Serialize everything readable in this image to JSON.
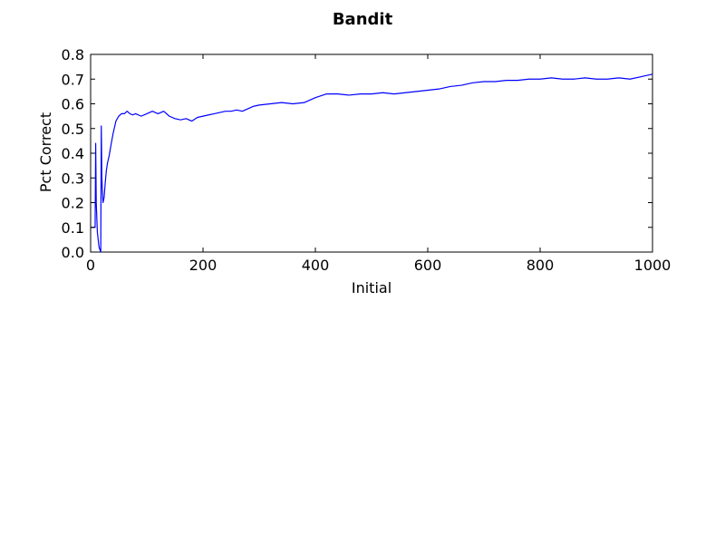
{
  "chart_data": {
    "type": "line",
    "title": "Bandit",
    "xlabel": "Initial",
    "ylabel": "Pct Correct",
    "xlim": [
      0,
      1000
    ],
    "ylim": [
      0.0,
      0.8
    ],
    "xticks": [
      0,
      200,
      400,
      600,
      800,
      1000
    ],
    "xtick_labels": [
      "0",
      "200",
      "400",
      "600",
      "800",
      "1000"
    ],
    "yticks": [
      0.0,
      0.1,
      0.2,
      0.3,
      0.4,
      0.5,
      0.6,
      0.7,
      0.8
    ],
    "ytick_labels": [
      "0.0",
      "0.1",
      "0.2",
      "0.3",
      "0.4",
      "0.5",
      "0.6",
      "0.7",
      "0.8"
    ],
    "grid": false,
    "colors": {
      "line": "#0000ff",
      "axes": "#000000",
      "background": "#ffffff"
    },
    "series": [
      {
        "x": [
          1,
          8,
          9,
          10,
          12,
          15,
          18,
          19,
          20,
          22,
          24,
          26,
          28,
          30,
          33,
          36,
          40,
          45,
          50,
          55,
          60,
          65,
          70,
          75,
          80,
          90,
          100,
          110,
          120,
          130,
          140,
          150,
          160,
          170,
          180,
          190,
          200,
          210,
          220,
          230,
          240,
          250,
          260,
          270,
          280,
          290,
          300,
          320,
          340,
          360,
          380,
          400,
          420,
          440,
          460,
          480,
          500,
          520,
          540,
          560,
          580,
          600,
          620,
          640,
          660,
          680,
          700,
          720,
          740,
          760,
          780,
          800,
          820,
          840,
          860,
          880,
          900,
          920,
          940,
          960,
          980,
          1000
        ],
        "y": [
          0.1,
          0.1,
          0.44,
          0.2,
          0.08,
          0.02,
          0.0,
          0.51,
          0.3,
          0.2,
          0.22,
          0.28,
          0.33,
          0.36,
          0.39,
          0.43,
          0.48,
          0.53,
          0.55,
          0.56,
          0.56,
          0.57,
          0.56,
          0.555,
          0.56,
          0.55,
          0.56,
          0.57,
          0.56,
          0.57,
          0.55,
          0.54,
          0.535,
          0.54,
          0.53,
          0.545,
          0.55,
          0.555,
          0.56,
          0.565,
          0.57,
          0.57,
          0.575,
          0.57,
          0.58,
          0.59,
          0.595,
          0.6,
          0.605,
          0.6,
          0.605,
          0.625,
          0.64,
          0.64,
          0.635,
          0.64,
          0.64,
          0.645,
          0.64,
          0.645,
          0.65,
          0.655,
          0.66,
          0.67,
          0.675,
          0.685,
          0.69,
          0.69,
          0.695,
          0.695,
          0.7,
          0.7,
          0.705,
          0.7,
          0.7,
          0.705,
          0.7,
          0.7,
          0.705,
          0.7,
          0.71,
          0.72
        ]
      }
    ]
  }
}
